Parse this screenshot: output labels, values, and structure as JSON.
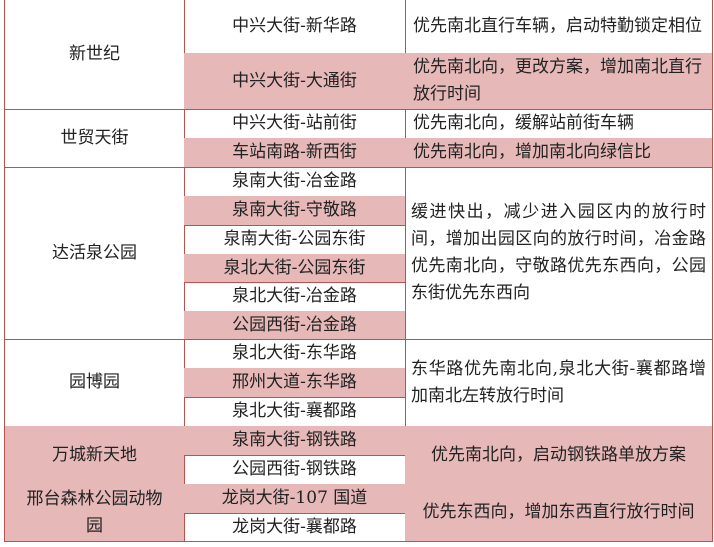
{
  "colors": {
    "shade": "#e6b8b8",
    "border": "#c0504d"
  },
  "groups": [
    {
      "name": "新世纪",
      "shaded": false,
      "rows": [
        {
          "intersection": "中兴大街-新华路",
          "shaded": false,
          "measure": "优先南北直行车辆，启动特勤锁定相位"
        },
        {
          "intersection": "中兴大街-大通街",
          "shaded": true,
          "measure": "优先南北向，更改方案，增加南北直行放行时间"
        }
      ]
    },
    {
      "name": "世贸天街",
      "shaded": false,
      "rows": [
        {
          "intersection": "中兴大街-站前街",
          "shaded": false,
          "measure": "优先南北向，缓解站前街车辆"
        },
        {
          "intersection": "车站南路-新西街",
          "shaded": true,
          "measure": "优先南北向，增加南北向绿信比"
        }
      ]
    },
    {
      "name": "达活泉公园",
      "shaded": false,
      "measure": "缓进快出，减少进入园区内的放行时间，增加出园区向的放行时间，冶金路优先南北向，守敬路优先东西向，公园东街优先东西向",
      "rows": [
        {
          "intersection": "泉南大街-冶金路",
          "shaded": false
        },
        {
          "intersection": "泉南大街-守敬路",
          "shaded": true
        },
        {
          "intersection": "泉南大街-公园东街",
          "shaded": false
        },
        {
          "intersection": "泉北大街-公园东街",
          "shaded": true
        },
        {
          "intersection": "泉北大街-冶金路",
          "shaded": false
        },
        {
          "intersection": "公园西街-冶金路",
          "shaded": true
        }
      ]
    },
    {
      "name": "园博园",
      "shaded": false,
      "measure": "东华路优先南北向,泉北大街-襄都路增加南北左转放行时间",
      "rows": [
        {
          "intersection": "泉北大街-东华路",
          "shaded": false
        },
        {
          "intersection": "邢州大道-东华路",
          "shaded": true
        },
        {
          "intersection": "泉北大街-襄都路",
          "shaded": false
        }
      ]
    },
    {
      "name": "万城新天地",
      "shaded": true,
      "measure": "优先南北向，启动钢铁路单放方案",
      "rows": [
        {
          "intersection": "泉南大街-钢铁路",
          "shaded": true
        },
        {
          "intersection": "公园西街-钢铁路",
          "shaded": false
        }
      ]
    },
    {
      "name": "邢台森林公园动物园",
      "shaded": true,
      "measure": "优先东西向，增加东西直行放行时间",
      "rows": [
        {
          "intersection": "龙岗大街-107 国道",
          "shaded": true
        },
        {
          "intersection": "龙岗大街-襄都路",
          "shaded": false
        }
      ]
    }
  ]
}
